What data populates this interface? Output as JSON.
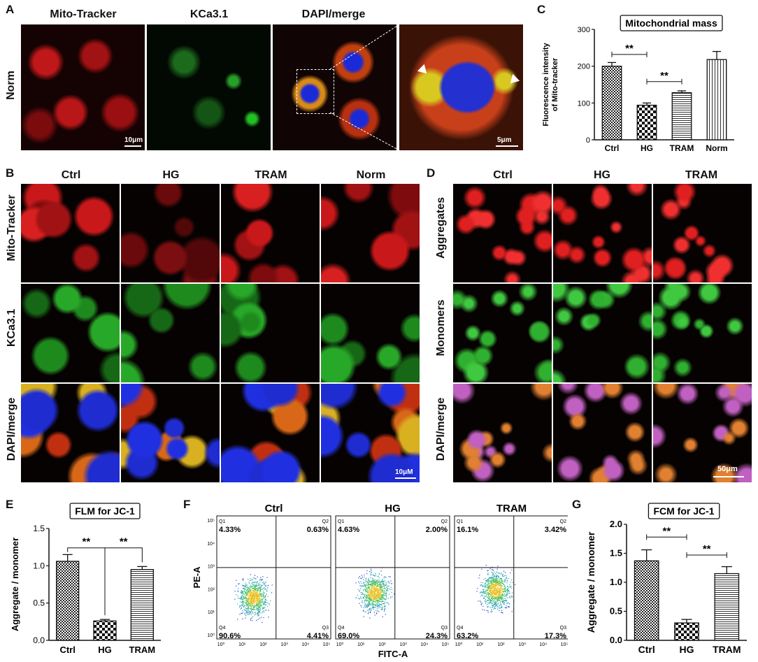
{
  "panelA": {
    "label": "A",
    "columns": [
      "Mito-Tracker",
      "KCa3.1",
      "DAPI/merge"
    ],
    "row": "Norm",
    "scale1": "10μm",
    "scale2": "5μm"
  },
  "panelB": {
    "label": "B",
    "columns": [
      "Ctrl",
      "HG",
      "TRAM",
      "Norm"
    ],
    "rows": [
      "Mito-Tracker",
      "KCa3.1",
      "DAPI/merge"
    ],
    "scale": "10μM"
  },
  "panelD": {
    "label": "D",
    "columns": [
      "Ctrl",
      "HG",
      "TRAM"
    ],
    "rows": [
      "Aggregates",
      "Monomers",
      "DAPI/merge"
    ],
    "scale": "50μm"
  },
  "panelC": {
    "label": "C"
  },
  "panelE": {
    "label": "E"
  },
  "panelF": {
    "label": "F",
    "xlabel": "FITC-A",
    "ylabel": "PE-A",
    "plots": [
      {
        "title": "Ctrl",
        "q1": "4.33%",
        "q2": "0.63%",
        "q3": "4.41%",
        "q4": "90.6%"
      },
      {
        "title": "HG",
        "q1": "4.63%",
        "q2": "2.00%",
        "q3": "24.3%",
        "q4": "69.0%"
      },
      {
        "title": "TRAM",
        "q1": "16.1%",
        "q2": "3.42%",
        "q3": "17.3%",
        "q4": "63.2%"
      }
    ],
    "quad_names": [
      "Q1",
      "Q2",
      "Q3",
      "Q4"
    ]
  },
  "panelG": {
    "label": "G"
  },
  "chart_data": [
    {
      "type": "bar",
      "title": "Mitochondrial mass",
      "ylabel": "Fluorescence intensity of Mito-tracker",
      "ylabel_lines": [
        "Fluorescence intensity",
        "of Mito-tracker"
      ],
      "categories": [
        "Ctrl",
        "HG",
        "TRAM",
        "Norm"
      ],
      "values": [
        200,
        94,
        128,
        218
      ],
      "errors": [
        10,
        6,
        5,
        22
      ],
      "patterns": [
        "checker",
        "checker-big",
        "hlines",
        "vlines"
      ],
      "ylim": [
        0,
        300
      ],
      "yticks": [
        0,
        100,
        200,
        300
      ],
      "significance": [
        {
          "from": 0,
          "to": 1,
          "label": "**",
          "y": 232
        },
        {
          "from": 1,
          "to": 2,
          "label": "**",
          "y": 158
        }
      ]
    },
    {
      "type": "bar",
      "title": "FLM for JC-1",
      "ylabel": "Aggregate / monomer",
      "categories": [
        "Ctrl",
        "HG",
        "TRAM"
      ],
      "values": [
        1.06,
        0.26,
        0.95
      ],
      "errors": [
        0.09,
        0.02,
        0.04
      ],
      "patterns": [
        "checker",
        "checker-big",
        "hlines"
      ],
      "ylim": [
        0,
        1.5
      ],
      "yticks": [
        "0.0",
        "0.5",
        "1.0",
        "1.5"
      ],
      "significance": [
        {
          "from": 0,
          "to": 1,
          "label": "**",
          "y": 1.24
        },
        {
          "from": 1,
          "to": 2,
          "label": "**",
          "y": 1.24
        }
      ]
    },
    {
      "type": "bar",
      "title": "FCM for JC-1",
      "ylabel": "Aggregate / monomer",
      "categories": [
        "Ctrl",
        "HG",
        "TRAM"
      ],
      "values": [
        1.37,
        0.3,
        1.15
      ],
      "errors": [
        0.19,
        0.06,
        0.12
      ],
      "patterns": [
        "checker",
        "checker-big",
        "hlines"
      ],
      "ylim": [
        0,
        2.0
      ],
      "yticks": [
        "0.0",
        "0.5",
        "1.0",
        "1.5",
        "2.0"
      ],
      "significance": [
        {
          "from": 0,
          "to": 1,
          "label": "**",
          "y": 1.78
        },
        {
          "from": 1,
          "to": 2,
          "label": "**",
          "y": 1.47
        }
      ]
    }
  ]
}
